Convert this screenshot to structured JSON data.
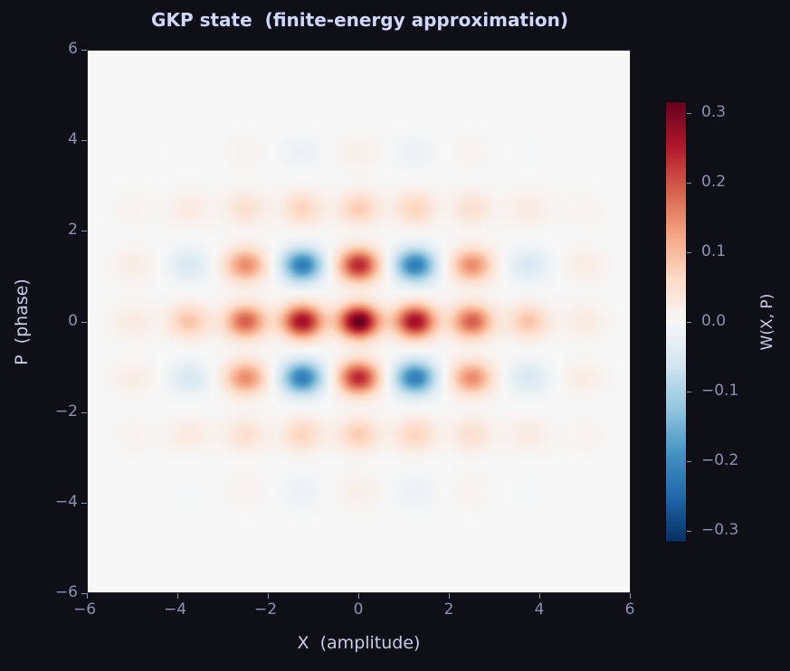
{
  "chart_data": {
    "type": "heatmap",
    "title": "GKP state  (finite-energy approximation)",
    "xlabel": "X  (amplitude)",
    "ylabel": "P  (phase)",
    "colorbar_label": "W(X, P)",
    "xlim": [
      -6,
      6
    ],
    "ylim": [
      -6,
      6
    ],
    "xticks": [
      "−6",
      "−4",
      "−2",
      "0",
      "2",
      "4",
      "6"
    ],
    "yticks": [
      "−6",
      "−4",
      "−2",
      "0",
      "2",
      "4",
      "6"
    ],
    "colorbar_ticks": [
      "−0.3",
      "−0.2",
      "−0.1",
      "0.0",
      "0.1",
      "0.2",
      "0.3"
    ],
    "colorbar_range": [
      -0.317,
      0.317
    ],
    "colormap": "RdBu_r",
    "grid": false,
    "peak_x": [
      -5.01,
      -3.76,
      -2.51,
      -1.25,
      0,
      1.25,
      2.51,
      3.76,
      5.01
    ],
    "peak_p": [
      3.76,
      2.51,
      1.25,
      0,
      -1.25,
      -2.51,
      -3.76
    ],
    "peak_values": [
      [
        0.0,
        -0.004,
        0.01,
        -0.02,
        0.02,
        -0.02,
        0.01,
        -0.004,
        0.0
      ],
      [
        0.01,
        0.03,
        0.05,
        0.07,
        0.08,
        0.07,
        0.05,
        0.03,
        0.01
      ],
      [
        0.025,
        -0.05,
        0.15,
        -0.22,
        0.24,
        -0.22,
        0.15,
        -0.05,
        0.025
      ],
      [
        0.03,
        0.09,
        0.19,
        0.27,
        0.32,
        0.27,
        0.19,
        0.09,
        0.03
      ],
      [
        0.025,
        -0.05,
        0.15,
        -0.22,
        0.24,
        -0.22,
        0.15,
        -0.05,
        0.025
      ],
      [
        0.01,
        0.03,
        0.05,
        0.07,
        0.08,
        0.07,
        0.05,
        0.03,
        0.01
      ],
      [
        0.0,
        -0.004,
        0.01,
        -0.02,
        0.02,
        -0.02,
        0.01,
        -0.004,
        0.0
      ]
    ]
  }
}
